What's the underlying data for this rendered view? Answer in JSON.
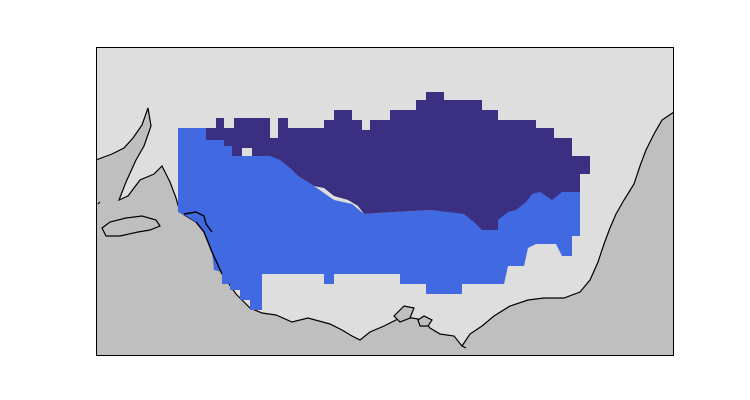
{
  "map": {
    "colors": {
      "ocean": "#dedede",
      "land": "#bfbfbf",
      "coastline": "#000000",
      "frame": "#000000",
      "class_low": "#4169e1",
      "class_high": "#3a2f80"
    },
    "legend": [],
    "features": [
      "ocean",
      "land",
      "coastline",
      "gridded-region-low",
      "gridded-region-high"
    ]
  }
}
